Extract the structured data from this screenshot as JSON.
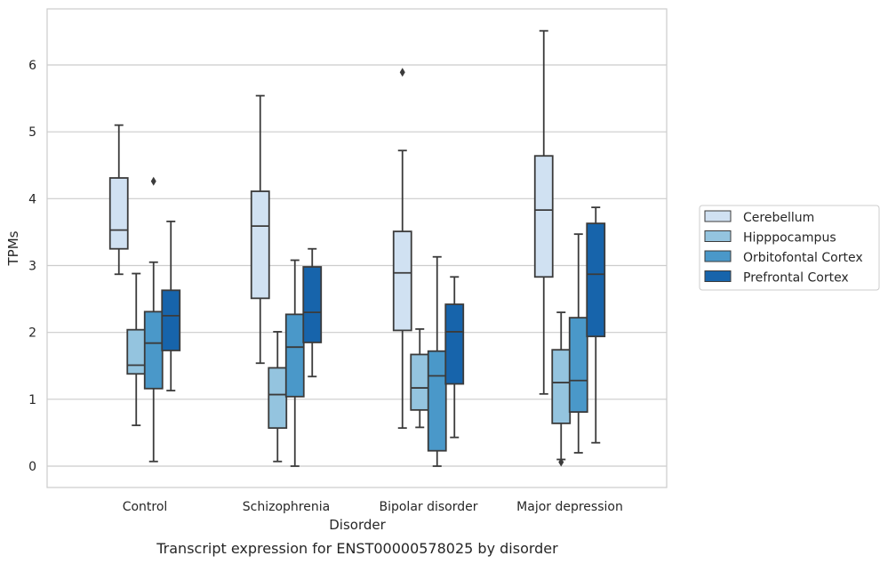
{
  "chart_data": {
    "type": "box",
    "caption": "Transcript expression for ENST00000578025 by disorder",
    "xlabel": "Disorder",
    "ylabel": "TPMs",
    "ylim": [
      -0.3,
      6.85
    ],
    "yticks": [
      0,
      1,
      2,
      3,
      4,
      5,
      6
    ],
    "grid": "horizontal",
    "legend_position": "right",
    "categories": [
      "Control",
      "Schizophrenia",
      "Bipolar disorder",
      "Major depression"
    ],
    "series": [
      {
        "name": "Cerebellum",
        "color": "#d0e1f2",
        "boxes": [
          {
            "whislo": 2.87,
            "q1": 3.25,
            "med": 3.53,
            "q3": 4.31,
            "whishi": 5.1,
            "fliers": []
          },
          {
            "whislo": 1.54,
            "q1": 2.51,
            "med": 3.59,
            "q3": 4.11,
            "whishi": 5.54,
            "fliers": []
          },
          {
            "whislo": 0.57,
            "q1": 2.03,
            "med": 2.89,
            "q3": 3.51,
            "whishi": 4.72,
            "fliers": [
              5.89
            ]
          },
          {
            "whislo": 1.08,
            "q1": 2.83,
            "med": 3.83,
            "q3": 4.64,
            "whishi": 6.51,
            "fliers": []
          }
        ]
      },
      {
        "name": "Hipppocampus",
        "color": "#94c4df",
        "boxes": [
          {
            "whislo": 0.61,
            "q1": 1.38,
            "med": 1.51,
            "q3": 2.04,
            "whishi": 2.88,
            "fliers": []
          },
          {
            "whislo": 0.07,
            "q1": 0.57,
            "med": 1.07,
            "q3": 1.47,
            "whishi": 2.01,
            "fliers": []
          },
          {
            "whislo": 0.58,
            "q1": 0.84,
            "med": 1.17,
            "q3": 1.67,
            "whishi": 2.05,
            "fliers": []
          },
          {
            "whislo": 0.1,
            "q1": 0.64,
            "med": 1.25,
            "q3": 1.74,
            "whishi": 2.3,
            "fliers": [
              0.06
            ]
          }
        ]
      },
      {
        "name": "Orbitofontal Cortex",
        "color": "#4a98c9",
        "boxes": [
          {
            "whislo": 0.07,
            "q1": 1.16,
            "med": 1.84,
            "q3": 2.31,
            "whishi": 3.05,
            "fliers": [
              4.26
            ]
          },
          {
            "whislo": 0.0,
            "q1": 1.04,
            "med": 1.78,
            "q3": 2.27,
            "whishi": 3.08,
            "fliers": []
          },
          {
            "whislo": 0.0,
            "q1": 0.23,
            "med": 1.35,
            "q3": 1.72,
            "whishi": 3.13,
            "fliers": []
          },
          {
            "whislo": 0.2,
            "q1": 0.81,
            "med": 1.28,
            "q3": 2.22,
            "whishi": 3.47,
            "fliers": []
          }
        ]
      },
      {
        "name": "Prefrontal Cortex",
        "color": "#1764ab",
        "boxes": [
          {
            "whislo": 1.13,
            "q1": 1.73,
            "med": 2.25,
            "q3": 2.63,
            "whishi": 3.66,
            "fliers": []
          },
          {
            "whislo": 1.34,
            "q1": 1.85,
            "med": 2.3,
            "q3": 2.98,
            "whishi": 3.25,
            "fliers": []
          },
          {
            "whislo": 0.43,
            "q1": 1.23,
            "med": 2.01,
            "q3": 2.42,
            "whishi": 2.83,
            "fliers": []
          },
          {
            "whislo": 0.35,
            "q1": 1.94,
            "med": 2.87,
            "q3": 3.63,
            "whishi": 3.87,
            "fliers": []
          }
        ]
      }
    ]
  }
}
